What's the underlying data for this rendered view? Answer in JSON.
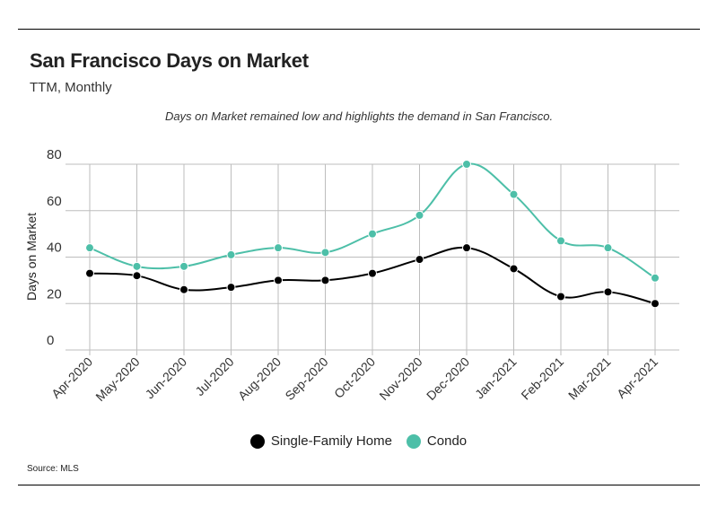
{
  "header": {
    "title": "San Francisco Days on Market",
    "subtitle": "TTM, Monthly",
    "annotation": "Days on Market remained low and highlights the demand in San Francisco."
  },
  "footer": {
    "source": "Source:  MLS"
  },
  "colors": {
    "single_family": "#000000",
    "condo": "#4dbfa8",
    "grid": "#bdbdbd"
  },
  "chart_data": {
    "type": "line",
    "title": "San Francisco Days on Market",
    "subtitle": "TTM, Monthly",
    "ylabel": "Days on Market",
    "xlabel": "",
    "ylim": [
      0,
      80
    ],
    "yticks": [
      0,
      20,
      40,
      60,
      80
    ],
    "grid": true,
    "legend": "bottom-center",
    "categories": [
      "Apr-2020",
      "May-2020",
      "Jun-2020",
      "Jul-2020",
      "Aug-2020",
      "Sep-2020",
      "Oct-2020",
      "Nov-2020",
      "Dec-2020",
      "Jan-2021",
      "Feb-2021",
      "Mar-2021",
      "Apr-2021"
    ],
    "series": [
      {
        "name": "Single-Family Home",
        "values": [
          33,
          32,
          26,
          27,
          30,
          30,
          33,
          39,
          44,
          35,
          23,
          25,
          20
        ]
      },
      {
        "name": "Condo",
        "values": [
          44,
          36,
          36,
          41,
          44,
          42,
          50,
          58,
          80,
          67,
          47,
          44,
          31
        ]
      }
    ]
  }
}
